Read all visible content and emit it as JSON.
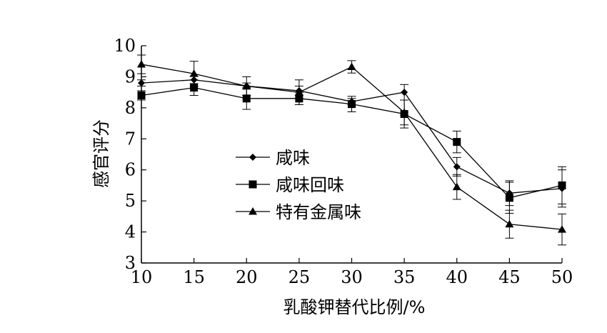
{
  "chart_data": {
    "type": "line",
    "xlabel": "乳酸钾替代比例/%",
    "ylabel": "感官评分",
    "x": [
      10,
      15,
      20,
      25,
      30,
      35,
      40,
      45,
      50
    ],
    "xlim": [
      10,
      50
    ],
    "ylim": [
      3,
      10
    ],
    "xticks": [
      "10",
      "15",
      "20",
      "25",
      "30",
      "35",
      "40",
      "45",
      "50"
    ],
    "yticks": [
      "3",
      "4",
      "5",
      "6",
      "7",
      "8",
      "9",
      "10"
    ],
    "grid": false,
    "legend": "inside-center-left",
    "series": [
      {
        "name": "咸味",
        "marker": "diamond",
        "values": [
          8.8,
          8.9,
          8.7,
          8.55,
          8.2,
          8.5,
          6.1,
          5.25,
          5.4
        ],
        "errors": [
          0.1,
          0.12,
          0.1,
          0.15,
          0.1,
          0.25,
          0.3,
          0.4,
          0.6
        ]
      },
      {
        "name": "咸味回味",
        "marker": "square",
        "values": [
          8.4,
          8.65,
          8.3,
          8.3,
          8.12,
          7.8,
          6.9,
          5.1,
          5.5
        ],
        "errors": [
          0.15,
          0.25,
          0.35,
          0.2,
          0.25,
          0.45,
          0.35,
          0.5,
          0.6
        ]
      },
      {
        "name": "特有金属味",
        "marker": "triangle",
        "values": [
          9.4,
          9.1,
          8.7,
          8.5,
          9.32,
          7.85,
          5.45,
          4.25,
          4.08
        ],
        "errors": [
          0.3,
          0.4,
          0.3,
          0.4,
          0.2,
          0.4,
          0.4,
          0.45,
          0.5
        ]
      }
    ]
  }
}
